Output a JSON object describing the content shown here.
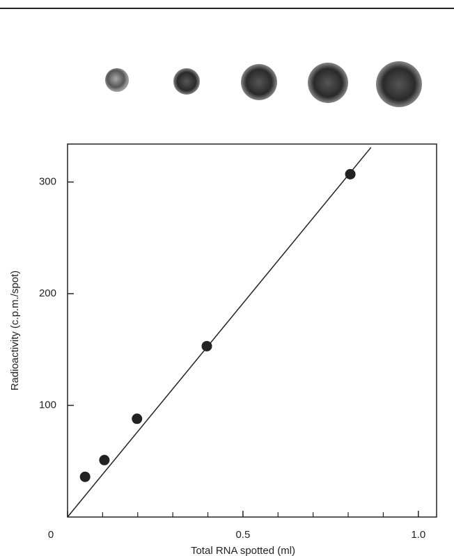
{
  "chart_data": {
    "type": "scatter",
    "x_label": "Total RNA spotted (ml)",
    "y_label": "Radioactivity (c.p.m./spot)",
    "x": [
      0.05,
      0.105,
      0.198,
      0.397,
      0.806
    ],
    "values": [
      36,
      51,
      88,
      153,
      307
    ],
    "color": "#222222",
    "fit_line": {
      "x": [
        0,
        0.865
      ],
      "y": [
        0,
        331
      ]
    },
    "xlim": [
      0,
      1.052
    ],
    "ylim": [
      0,
      334
    ],
    "xticks": [
      0,
      0.5,
      {
        "value": 1,
        "label": "1.0"
      }
    ],
    "xminorticks": [
      0.1,
      0.2,
      0.3,
      0.4,
      0.6,
      0.7,
      0.8,
      0.9
    ],
    "yticks": [
      100,
      200,
      300
    ]
  }
}
